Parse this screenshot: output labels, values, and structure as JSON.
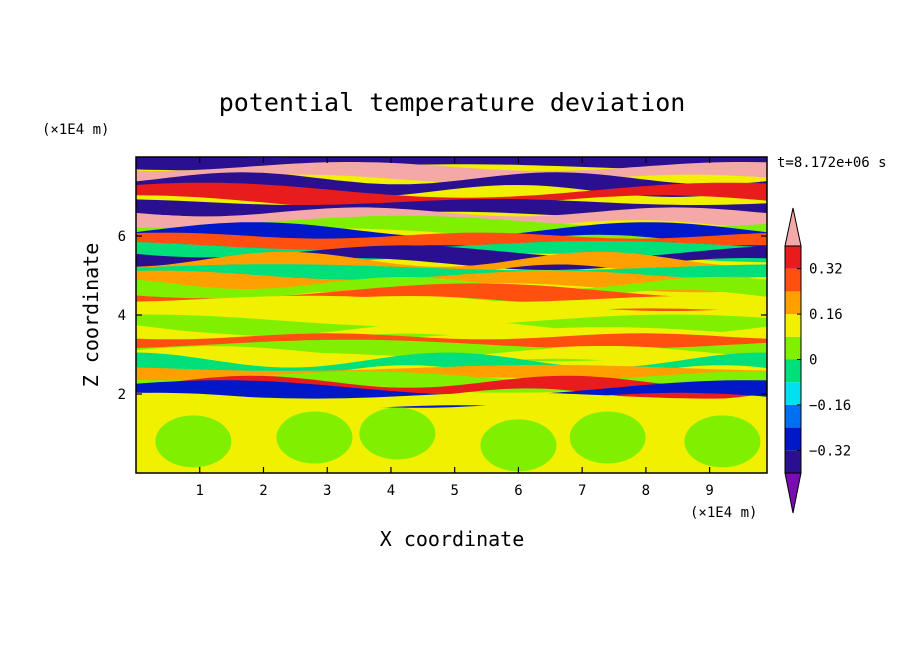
{
  "chart_data": {
    "type": "heatmap",
    "title": "potential temperature deviation",
    "xlabel": "X coordinate",
    "ylabel": "Z coordinate",
    "x_unit": "(×1E4 m)",
    "y_unit": "(×1E4 m)",
    "time_label": "t=8.172e+06 s",
    "xlim": [
      0,
      9.9
    ],
    "ylim": [
      0,
      8
    ],
    "x_ticks": [
      "1",
      "2",
      "3",
      "4",
      "5",
      "6",
      "7",
      "8",
      "9"
    ],
    "y_ticks": [
      "2",
      "4",
      "6"
    ],
    "colorbar": {
      "levels": [
        -0.4,
        -0.32,
        -0.24,
        -0.16,
        -0.08,
        0,
        0.08,
        0.16,
        0.24,
        0.32,
        0.4
      ],
      "labels": [
        "0.32",
        "0.16",
        "0",
        "−0.16",
        "−0.32"
      ],
      "colors": [
        "#7a0cb4",
        "#2a1090",
        "#0018c8",
        "#0070f0",
        "#00e0f0",
        "#00e07a",
        "#80f000",
        "#f0f000",
        "#ffa000",
        "#ff5010",
        "#e81c1c",
        "#f4a8a8"
      ]
    },
    "bands": [
      {
        "z": 7.9,
        "level": -0.4
      },
      {
        "z": 7.6,
        "level": 0.4
      },
      {
        "z": 7.3,
        "level": -0.4
      },
      {
        "z": 7.0,
        "level": 0.32
      },
      {
        "z": 6.7,
        "level": -0.4
      },
      {
        "z": 6.45,
        "level": 0.4
      },
      {
        "z": 6.2,
        "level": 0.0
      },
      {
        "z": 6.0,
        "level": -0.32
      },
      {
        "z": 5.85,
        "level": 0.24
      },
      {
        "z": 5.6,
        "level": -0.08
      },
      {
        "z": 5.45,
        "level": -0.4
      },
      {
        "z": 5.25,
        "level": 0.16
      },
      {
        "z": 5.05,
        "level": -0.08
      },
      {
        "z": 4.85,
        "level": 0.16
      },
      {
        "z": 4.65,
        "level": 0.0
      },
      {
        "z": 4.45,
        "level": 0.24
      },
      {
        "z": 4.25,
        "level": 0.08
      },
      {
        "z": 4.0,
        "level": 0.08
      },
      {
        "z": 3.7,
        "level": 0.0
      },
      {
        "z": 3.5,
        "level": 0.08
      },
      {
        "z": 3.3,
        "level": 0.24
      },
      {
        "z": 3.1,
        "level": 0.0
      },
      {
        "z": 2.9,
        "level": 0.08
      },
      {
        "z": 2.7,
        "level": -0.08
      },
      {
        "z": 2.5,
        "level": 0.16
      },
      {
        "z": 2.3,
        "level": 0.0
      },
      {
        "z": 2.15,
        "level": 0.32
      },
      {
        "z": 2.0,
        "level": -0.32
      },
      {
        "z": 1.8,
        "level": 0.08
      }
    ],
    "blobs": [
      {
        "x": 0.9,
        "z": 0.8,
        "level": 0.0
      },
      {
        "x": 2.8,
        "z": 0.9,
        "level": 0.0
      },
      {
        "x": 4.1,
        "z": 1.0,
        "level": 0.0
      },
      {
        "x": 6.0,
        "z": 0.7,
        "level": 0.0
      },
      {
        "x": 7.4,
        "z": 0.9,
        "level": 0.0
      },
      {
        "x": 9.2,
        "z": 0.8,
        "level": 0.0
      }
    ]
  }
}
